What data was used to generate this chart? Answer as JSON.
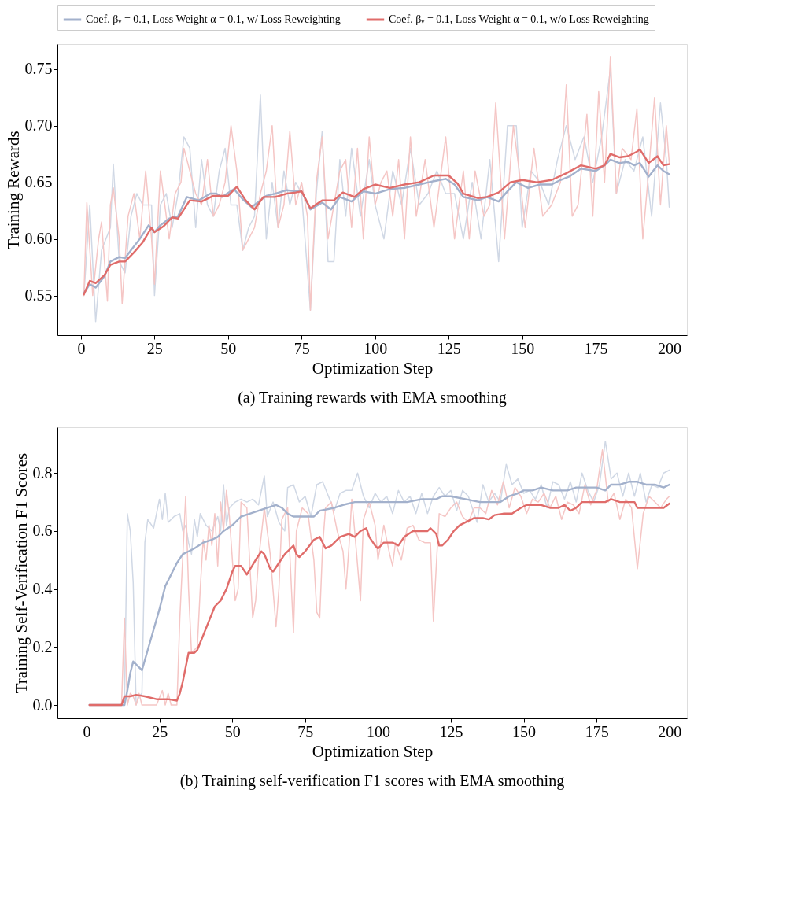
{
  "chart_data": [
    {
      "type": "line",
      "title": "(a) Training rewards with EMA smoothing",
      "xlabel": "Optimization Step",
      "ylabel": "Training Rewards",
      "xlim": [
        -8,
        206
      ],
      "ylim": [
        0.515,
        0.772
      ],
      "xticks": [
        0,
        25,
        50,
        75,
        100,
        125,
        150,
        175,
        200
      ],
      "yticks": [
        0.55,
        {
          "value": 0.6,
          "label": "0.60"
        },
        0.65,
        {
          "value": 0.7,
          "label": "0.70"
        },
        0.75
      ],
      "legend": "top",
      "series": [
        {
          "color": "#d0d8e5",
          "x": [
            1,
            3,
            5,
            7,
            10,
            11,
            13,
            15,
            17,
            19,
            21,
            24,
            25,
            27,
            29,
            31,
            33,
            35,
            37,
            39,
            41,
            43,
            45,
            47,
            49,
            51,
            53,
            55,
            57,
            59,
            61,
            63,
            65,
            67,
            69,
            71,
            73,
            75,
            78,
            80,
            82,
            84,
            86,
            88,
            90,
            92,
            95,
            98,
            100,
            103,
            106,
            109,
            112,
            115,
            118,
            121,
            124,
            127,
            130,
            133,
            136,
            139,
            142,
            145,
            148,
            150,
            153,
            156,
            159,
            162,
            165,
            168,
            171,
            174,
            177,
            180,
            182,
            185,
            188,
            191,
            194,
            197,
            199,
            200
          ],
          "values": [
            0.55,
            0.63,
            0.527,
            0.59,
            0.61,
            0.666,
            0.58,
            0.57,
            0.62,
            0.64,
            0.63,
            0.63,
            0.55,
            0.63,
            0.64,
            0.61,
            0.64,
            0.69,
            0.68,
            0.61,
            0.67,
            0.63,
            0.62,
            0.66,
            0.68,
            0.63,
            0.63,
            0.59,
            0.61,
            0.62,
            0.727,
            0.6,
            0.65,
            0.61,
            0.66,
            0.63,
            0.65,
            0.64,
            0.537,
            0.64,
            0.695,
            0.58,
            0.58,
            0.67,
            0.62,
            0.68,
            0.62,
            0.67,
            0.63,
            0.6,
            0.66,
            0.63,
            0.68,
            0.63,
            0.64,
            0.66,
            0.64,
            0.64,
            0.6,
            0.65,
            0.6,
            0.67,
            0.58,
            0.7,
            0.7,
            0.61,
            0.66,
            0.65,
            0.63,
            0.67,
            0.7,
            0.67,
            0.69,
            0.65,
            0.69,
            0.75,
            0.64,
            0.67,
            0.66,
            0.69,
            0.62,
            0.72,
            0.67,
            0.628
          ]
        },
        {
          "color": "#f5c6c5",
          "x": [
            1,
            2,
            4,
            6,
            7,
            9,
            10,
            11,
            13,
            14,
            16,
            18,
            20,
            22,
            24,
            25,
            27,
            30,
            32,
            34,
            35,
            37,
            39,
            41,
            43,
            45,
            47,
            49,
            51,
            53,
            55,
            57,
            59,
            61,
            63,
            65,
            67,
            69,
            71,
            73,
            75,
            77,
            78,
            80,
            82,
            84,
            86,
            88,
            90,
            92,
            94,
            96,
            98,
            100,
            102,
            104,
            106,
            108,
            110,
            112,
            114,
            117,
            120,
            122,
            124,
            127,
            130,
            132,
            134,
            137,
            139,
            141,
            144,
            147,
            149,
            151,
            154,
            157,
            160,
            163,
            165,
            167,
            169,
            172,
            174,
            176,
            178,
            180,
            182,
            184,
            187,
            189,
            191,
            193,
            195,
            197,
            199,
            200
          ],
          "values": [
            0.55,
            0.632,
            0.55,
            0.6,
            0.615,
            0.545,
            0.63,
            0.645,
            0.6,
            0.543,
            0.62,
            0.64,
            0.6,
            0.66,
            0.6,
            0.56,
            0.66,
            0.6,
            0.64,
            0.65,
            0.68,
            0.66,
            0.64,
            0.63,
            0.67,
            0.62,
            0.63,
            0.65,
            0.7,
            0.66,
            0.59,
            0.6,
            0.61,
            0.64,
            0.66,
            0.7,
            0.61,
            0.63,
            0.695,
            0.63,
            0.65,
            0.62,
            0.537,
            0.65,
            0.69,
            0.6,
            0.63,
            0.66,
            0.67,
            0.61,
            0.68,
            0.6,
            0.69,
            0.63,
            0.65,
            0.66,
            0.62,
            0.67,
            0.6,
            0.69,
            0.62,
            0.67,
            0.61,
            0.65,
            0.69,
            0.6,
            0.66,
            0.6,
            0.66,
            0.62,
            0.63,
            0.72,
            0.6,
            0.7,
            0.66,
            0.61,
            0.68,
            0.62,
            0.63,
            0.65,
            0.736,
            0.62,
            0.63,
            0.71,
            0.62,
            0.73,
            0.65,
            0.761,
            0.64,
            0.68,
            0.67,
            0.715,
            0.6,
            0.66,
            0.725,
            0.63,
            0.7,
            0.667
          ]
        },
        {
          "name": "Coef. βᵥ = 0.1, Loss Weight α = 0.1, w/ Loss Reweighting",
          "color": "#a3b1cc",
          "x": [
            1,
            3,
            5,
            8,
            10,
            13,
            15,
            17,
            20,
            23,
            25,
            27,
            30,
            33,
            36,
            40,
            44,
            46,
            48,
            52,
            55,
            58,
            60,
            63,
            66,
            70,
            73,
            75,
            78,
            82,
            85,
            88,
            92,
            96,
            100,
            105,
            110,
            115,
            120,
            124,
            127,
            130,
            135,
            138,
            142,
            145,
            148,
            152,
            156,
            160,
            163,
            166,
            170,
            175,
            178,
            180,
            183,
            186,
            188,
            190,
            193,
            196,
            198,
            200
          ],
          "values": [
            0.552,
            0.56,
            0.557,
            0.567,
            0.58,
            0.584,
            0.583,
            0.59,
            0.6,
            0.612,
            0.606,
            0.612,
            0.618,
            0.62,
            0.637,
            0.634,
            0.64,
            0.64,
            0.637,
            0.644,
            0.635,
            0.628,
            0.632,
            0.638,
            0.64,
            0.643,
            0.642,
            0.642,
            0.626,
            0.632,
            0.626,
            0.637,
            0.633,
            0.642,
            0.64,
            0.644,
            0.645,
            0.648,
            0.651,
            0.653,
            0.648,
            0.637,
            0.634,
            0.637,
            0.633,
            0.642,
            0.65,
            0.645,
            0.648,
            0.648,
            0.652,
            0.655,
            0.662,
            0.66,
            0.665,
            0.67,
            0.667,
            0.668,
            0.665,
            0.667,
            0.655,
            0.665,
            0.66,
            0.657
          ]
        },
        {
          "name": "Coef. βᵥ = 0.1, Loss Weight α = 0.1, w/o Loss Reweighting",
          "color": "#e06c6a",
          "x": [
            1,
            3,
            5,
            8,
            10,
            13,
            15,
            18,
            21,
            24,
            25,
            28,
            31,
            33,
            37,
            41,
            45,
            50,
            53,
            56,
            59,
            62,
            66,
            70,
            73,
            75,
            78,
            82,
            86,
            89,
            93,
            96,
            100,
            105,
            110,
            115,
            120,
            125,
            128,
            130,
            135,
            138,
            142,
            146,
            150,
            155,
            160,
            165,
            170,
            175,
            178,
            180,
            183,
            186,
            189,
            190,
            193,
            196,
            198,
            200
          ],
          "values": [
            0.551,
            0.563,
            0.561,
            0.568,
            0.577,
            0.58,
            0.58,
            0.588,
            0.597,
            0.61,
            0.606,
            0.611,
            0.619,
            0.618,
            0.634,
            0.633,
            0.638,
            0.638,
            0.646,
            0.634,
            0.626,
            0.637,
            0.637,
            0.64,
            0.641,
            0.642,
            0.627,
            0.634,
            0.634,
            0.641,
            0.637,
            0.644,
            0.648,
            0.645,
            0.648,
            0.65,
            0.656,
            0.656,
            0.649,
            0.64,
            0.636,
            0.637,
            0.641,
            0.65,
            0.652,
            0.65,
            0.652,
            0.658,
            0.665,
            0.662,
            0.665,
            0.675,
            0.672,
            0.673,
            0.677,
            0.679,
            0.667,
            0.673,
            0.665,
            0.666
          ]
        }
      ]
    },
    {
      "type": "line",
      "title": "(b) Training self-verification F1 scores with EMA smoothing",
      "xlabel": "Optimization Step",
      "ylabel": "Training Self-Verification F1 Scores",
      "xlim": [
        -10,
        206
      ],
      "ylim": [
        -0.046,
        0.958
      ],
      "xticks": [
        0,
        25,
        50,
        75,
        100,
        125,
        150,
        175,
        200
      ],
      "yticks": [
        {
          "value": 0,
          "label": "0.0"
        },
        0.2,
        0.4,
        0.6,
        0.8
      ],
      "series": [
        {
          "color": "#d0d8e5",
          "x": [
            1,
            12,
            13,
            14,
            15,
            16,
            17,
            18,
            19,
            20,
            21,
            23,
            25,
            26,
            27,
            28,
            30,
            32,
            33,
            34,
            35,
            36,
            37,
            38,
            39,
            41,
            43,
            45,
            46,
            47,
            48,
            49,
            51,
            53,
            55,
            57,
            59,
            61,
            62,
            64,
            66,
            68,
            69,
            71,
            73,
            75,
            77,
            79,
            81,
            83,
            85,
            87,
            89,
            91,
            93,
            95,
            97,
            99,
            101,
            103,
            105,
            107,
            109,
            111,
            113,
            115,
            117,
            119,
            121,
            123,
            125,
            127,
            129,
            131,
            134,
            136,
            138,
            140,
            142,
            144,
            146,
            148,
            150,
            152,
            154,
            156,
            158,
            160,
            162,
            164,
            166,
            168,
            170,
            172,
            174,
            176,
            178,
            180,
            182,
            184,
            186,
            188,
            190,
            192,
            194,
            196,
            198,
            200
          ],
          "values": [
            0,
            0,
            0,
            0.66,
            0.6,
            0.42,
            0,
            0.03,
            0.04,
            0.56,
            0.64,
            0.61,
            0.71,
            0.64,
            0.73,
            0.63,
            0.65,
            0.66,
            0.6,
            0.62,
            0.56,
            0.52,
            0.64,
            0.58,
            0.66,
            0.62,
            0.6,
            0.65,
            0.6,
            0.76,
            0.62,
            0.68,
            0.7,
            0.71,
            0.7,
            0.71,
            0.69,
            0.79,
            0.65,
            0.7,
            0.63,
            0.6,
            0.75,
            0.76,
            0.7,
            0.72,
            0.65,
            0.76,
            0.77,
            0.72,
            0.67,
            0.73,
            0.74,
            0.74,
            0.8,
            0.72,
            0.68,
            0.73,
            0.7,
            0.72,
            0.66,
            0.74,
            0.7,
            0.72,
            0.66,
            0.73,
            0.66,
            0.72,
            0.75,
            0.72,
            0.74,
            0.67,
            0.74,
            0.72,
            0.63,
            0.76,
            0.7,
            0.73,
            0.7,
            0.83,
            0.76,
            0.78,
            0.73,
            0.74,
            0.71,
            0.76,
            0.68,
            0.77,
            0.76,
            0.71,
            0.77,
            0.7,
            0.8,
            0.74,
            0.7,
            0.76,
            0.91,
            0.78,
            0.8,
            0.72,
            0.8,
            0.72,
            0.8,
            0.7,
            0.76,
            0.75,
            0.8,
            0.81
          ]
        },
        {
          "color": "#f5c6c5",
          "x": [
            1,
            12,
            13,
            14,
            15,
            16,
            17,
            18,
            19,
            20,
            22,
            24,
            26,
            27,
            28,
            29,
            31,
            32,
            34,
            35,
            36,
            38,
            39,
            40,
            41,
            42,
            43,
            44,
            45,
            46,
            47,
            48,
            49,
            51,
            52,
            53,
            55,
            57,
            58,
            59,
            61,
            63,
            65,
            66,
            67,
            69,
            71,
            72,
            74,
            76,
            78,
            79,
            80,
            81,
            82,
            84,
            86,
            88,
            89,
            90,
            91,
            92,
            94,
            95,
            97,
            99,
            100,
            102,
            104,
            105,
            106,
            108,
            110,
            112,
            114,
            116,
            118,
            119,
            120,
            121,
            123,
            125,
            127,
            129,
            131,
            133,
            135,
            137,
            139,
            141,
            143,
            145,
            147,
            149,
            151,
            153,
            155,
            157,
            159,
            161,
            163,
            165,
            167,
            169,
            171,
            173,
            175,
            177,
            179,
            181,
            183,
            185,
            187,
            189,
            191,
            193,
            195,
            197,
            199,
            200
          ],
          "values": [
            0,
            0,
            0.3,
            0,
            0.04,
            0.03,
            0,
            0.04,
            0,
            0,
            0,
            0,
            0.05,
            0,
            0.04,
            0,
            0,
            0.3,
            0.72,
            0.4,
            0.18,
            0.2,
            0.4,
            0.57,
            0.5,
            0.62,
            0.55,
            0.66,
            0.48,
            0.7,
            0.6,
            0.74,
            0.65,
            0.36,
            0.4,
            0.7,
            0.68,
            0.3,
            0.36,
            0.5,
            0.68,
            0.52,
            0.27,
            0.4,
            0.64,
            0.68,
            0.25,
            0.6,
            0.68,
            0.66,
            0.5,
            0.32,
            0.3,
            0.55,
            0.68,
            0.7,
            0.6,
            0.53,
            0.4,
            0.54,
            0.71,
            0.6,
            0.36,
            0.64,
            0.7,
            0.62,
            0.5,
            0.62,
            0.52,
            0.48,
            0.56,
            0.5,
            0.61,
            0.62,
            0.57,
            0.56,
            0.56,
            0.29,
            0.48,
            0.66,
            0.65,
            0.68,
            0.7,
            0.65,
            0.63,
            0.68,
            0.68,
            0.66,
            0.74,
            0.69,
            0.77,
            0.68,
            0.75,
            0.72,
            0.66,
            0.71,
            0.7,
            0.73,
            0.68,
            0.72,
            0.64,
            0.7,
            0.69,
            0.66,
            0.76,
            0.69,
            0.74,
            0.88,
            0.7,
            0.73,
            0.64,
            0.71,
            0.68,
            0.47,
            0.66,
            0.72,
            0.7,
            0.68,
            0.71,
            0.72
          ]
        },
        {
          "color": "#a3b1cc",
          "x": [
            1,
            12,
            13,
            14,
            15,
            16,
            18,
            19,
            21,
            23,
            25,
            27,
            29,
            31,
            33,
            35,
            37,
            40,
            43,
            45,
            47,
            50,
            53,
            56,
            59,
            62,
            65,
            67,
            69,
            71,
            75,
            78,
            80,
            85,
            88,
            92,
            96,
            100,
            105,
            110,
            115,
            120,
            122,
            125,
            130,
            135,
            138,
            142,
            145,
            148,
            150,
            153,
            156,
            160,
            165,
            168,
            172,
            175,
            178,
            180,
            183,
            186,
            189,
            192,
            195,
            198,
            200
          ],
          "values": [
            0,
            0,
            0,
            0.05,
            0.11,
            0.15,
            0.13,
            0.12,
            0.19,
            0.26,
            0.33,
            0.41,
            0.45,
            0.49,
            0.52,
            0.53,
            0.54,
            0.56,
            0.57,
            0.58,
            0.6,
            0.62,
            0.65,
            0.66,
            0.67,
            0.68,
            0.69,
            0.68,
            0.66,
            0.65,
            0.65,
            0.65,
            0.67,
            0.68,
            0.69,
            0.7,
            0.7,
            0.7,
            0.7,
            0.7,
            0.71,
            0.71,
            0.72,
            0.72,
            0.71,
            0.7,
            0.7,
            0.7,
            0.72,
            0.73,
            0.74,
            0.74,
            0.75,
            0.74,
            0.74,
            0.75,
            0.75,
            0.75,
            0.74,
            0.76,
            0.76,
            0.77,
            0.77,
            0.76,
            0.76,
            0.75,
            0.76
          ]
        },
        {
          "color": "#e06c6a",
          "x": [
            1,
            12,
            13,
            15,
            17,
            20,
            24,
            28,
            31,
            32,
            33,
            35,
            37,
            38,
            40,
            42,
            44,
            46,
            48,
            50,
            51,
            53,
            55,
            58,
            60,
            61,
            63,
            64,
            66,
            68,
            70,
            71,
            72,
            73,
            75,
            78,
            80,
            82,
            84,
            87,
            90,
            92,
            94,
            96,
            97,
            99,
            100,
            102,
            105,
            107,
            109,
            112,
            115,
            117,
            118,
            119,
            120,
            121,
            122,
            124,
            126,
            128,
            130,
            133,
            136,
            138,
            140,
            143,
            146,
            149,
            151,
            153,
            156,
            159,
            162,
            164,
            166,
            168,
            170,
            172,
            175,
            178,
            180,
            183,
            186,
            188,
            189,
            192,
            195,
            198,
            200
          ],
          "values": [
            0,
            0,
            0.03,
            0.03,
            0.035,
            0.03,
            0.02,
            0.02,
            0.015,
            0.04,
            0.08,
            0.18,
            0.18,
            0.19,
            0.24,
            0.29,
            0.34,
            0.36,
            0.4,
            0.46,
            0.48,
            0.48,
            0.45,
            0.5,
            0.53,
            0.52,
            0.47,
            0.46,
            0.49,
            0.52,
            0.54,
            0.55,
            0.52,
            0.51,
            0.53,
            0.57,
            0.58,
            0.54,
            0.55,
            0.58,
            0.59,
            0.58,
            0.6,
            0.61,
            0.58,
            0.55,
            0.54,
            0.56,
            0.56,
            0.55,
            0.58,
            0.6,
            0.6,
            0.6,
            0.61,
            0.6,
            0.59,
            0.55,
            0.55,
            0.57,
            0.6,
            0.62,
            0.63,
            0.645,
            0.645,
            0.64,
            0.655,
            0.66,
            0.66,
            0.68,
            0.69,
            0.69,
            0.69,
            0.68,
            0.68,
            0.69,
            0.67,
            0.68,
            0.7,
            0.7,
            0.7,
            0.7,
            0.71,
            0.7,
            0.7,
            0.7,
            0.68,
            0.68,
            0.68,
            0.68,
            0.695
          ]
        }
      ]
    }
  ]
}
